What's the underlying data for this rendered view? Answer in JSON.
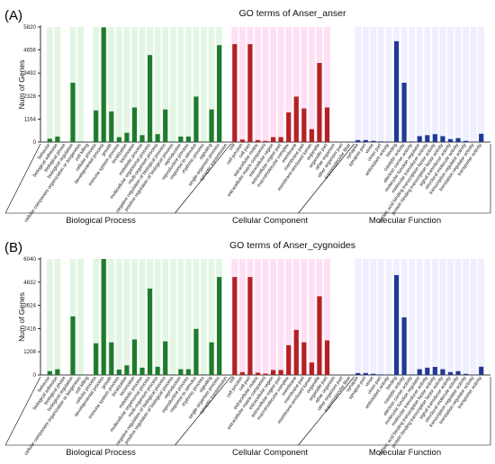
{
  "chart_data": [
    {
      "type": "bar",
      "panel_label": "(A)",
      "title": "GO terms of Anser_anser",
      "ylabel": "Num of Genes",
      "yticks": [
        0,
        1164,
        2328,
        3492,
        4656,
        5820
      ],
      "ylim": [
        0,
        5820
      ],
      "grid": false,
      "groups": [
        {
          "name": "Biological Process",
          "color": "#1f7a2e",
          "highlight": "#d7f2d9",
          "categories": [
            "behavior",
            "biological adhesion",
            "biological phase",
            "biological regulation",
            "cellular component organization or biogenesis",
            "cell killing",
            "cellular process",
            "developmental process",
            "growth",
            "immune system process",
            "localization",
            "locomotion",
            "metabolic process",
            "multicellular organismal process",
            "multi-organism process",
            "negative regulation of biological process",
            "positive regulation of biological process",
            "reproduction",
            "reproductive process",
            "response to stimulus",
            "rhythmic process",
            "signaling",
            "single-organism process",
            "synaptic transmission"
          ],
          "values": [
            170,
            280,
            0,
            3000,
            30,
            0,
            1600,
            5800,
            1550,
            250,
            470,
            1750,
            350,
            4400,
            400,
            1650,
            30,
            280,
            280,
            2300,
            30,
            1650,
            4900,
            0
          ]
        },
        {
          "name": "Cellular Component",
          "color": "#b22222",
          "highlight": "#ffd1ee",
          "categories": [
            "cell",
            "cell junction",
            "cell part",
            "extracellular matrix",
            "extracellular matrix component",
            "extracellular region",
            "extracellular region part",
            "macromolecular complex",
            "membrane",
            "membrane part",
            "membrane-enclosed lumen",
            "organelle",
            "organelle part",
            "other organism",
            "other organism part",
            "supramolecular fiber"
          ],
          "values": [
            4950,
            130,
            4950,
            100,
            60,
            250,
            250,
            1500,
            2300,
            1700,
            650,
            4000,
            1750,
            0,
            0,
            0
          ]
        },
        {
          "name": "Molecular Function",
          "color": "#1f3a93",
          "highlight": "#e8e8ff",
          "categories": [
            "synapse",
            "synapse part",
            "virion",
            "virion part",
            "antioxidant activity",
            "binding",
            "catalytic activity",
            "electron carrier activity",
            "molecular function regulator",
            "molecular transducer activity",
            "nucleic acid binding transcription factor activity",
            "protein binding transcription factor activity",
            "signal transducer activity",
            "structural molecule activity",
            "transcription regulator activity",
            "translation regulator activity",
            "transporter activity"
          ],
          "values": [
            100,
            100,
            60,
            30,
            20,
            5100,
            3000,
            30,
            300,
            350,
            400,
            300,
            150,
            200,
            60,
            20,
            420
          ]
        }
      ]
    },
    {
      "type": "bar",
      "panel_label": "(B)",
      "title": "GO terms of Anser_cygnoides",
      "ylabel": "Num of Genes",
      "yticks": [
        0,
        1208,
        2416,
        3624,
        4832,
        6040
      ],
      "ylim": [
        0,
        6040
      ],
      "grid": false,
      "groups": [
        {
          "name": "Biological Process",
          "color": "#1f7a2e",
          "highlight": "#d7f2d9",
          "categories": [
            "behavior",
            "biological adhesion",
            "biological phase",
            "biological regulation",
            "cellular component organization or biogenesis",
            "cell killing",
            "cellular process",
            "developmental process",
            "growth",
            "immune system process",
            "localization",
            "locomotion",
            "metabolic process",
            "multicellular organismal process",
            "multi-organism process",
            "negative regulation of biological process",
            "positive regulation of biological process",
            "reproduction",
            "reproductive process",
            "response to stimulus",
            "rhythmic process",
            "signaling",
            "single-organism process",
            "synaptic transmission"
          ],
          "values": [
            200,
            300,
            0,
            3050,
            30,
            0,
            1650,
            6040,
            1700,
            280,
            500,
            1850,
            380,
            4500,
            430,
            1750,
            30,
            300,
            300,
            2400,
            30,
            1700,
            5100,
            0
          ]
        },
        {
          "name": "Cellular Component",
          "color": "#b22222",
          "highlight": "#ffd1ee",
          "categories": [
            "cell",
            "cell junction",
            "cell part",
            "extracellular matrix",
            "extracellular matrix component",
            "extracellular region",
            "extracellular region part",
            "macromolecular complex",
            "membrane",
            "membrane part",
            "membrane-enclosed lumen",
            "organelle",
            "organelle part",
            "other organism",
            "other organism part",
            "supramolecular fiber"
          ],
          "values": [
            5100,
            150,
            5100,
            120,
            70,
            260,
            260,
            1550,
            2350,
            1700,
            650,
            4100,
            1800,
            0,
            0,
            0
          ]
        },
        {
          "name": "Molecular Function",
          "color": "#1f3a93",
          "highlight": "#e8e8ff",
          "categories": [
            "synapse",
            "synapse part",
            "virion",
            "virion part",
            "antioxidant activity",
            "binding",
            "catalytic activity",
            "electron carrier activity",
            "molecular function regulator",
            "molecular transducer activity",
            "nucleic acid binding transcription factor activity",
            "protein binding transcription factor activity",
            "signal transducer activity",
            "structural molecule activity",
            "transcription regulator activity",
            "translation regulator activity",
            "transporter activity"
          ],
          "values": [
            100,
            100,
            60,
            30,
            20,
            5200,
            3000,
            30,
            300,
            380,
            420,
            300,
            150,
            200,
            60,
            20,
            430
          ]
        }
      ]
    }
  ]
}
